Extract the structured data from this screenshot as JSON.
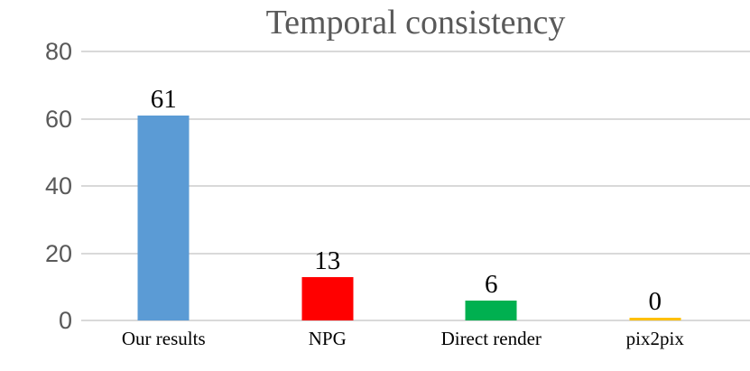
{
  "chart_data": {
    "type": "bar",
    "title": "Temporal consistency",
    "categories": [
      "Our results",
      "NPG",
      "Direct render",
      "pix2pix"
    ],
    "values": [
      61,
      13,
      6,
      0
    ],
    "value_labels": [
      "61",
      "13",
      "6",
      "0"
    ],
    "bar_colors": [
      "#5B9BD5",
      "#FF0000",
      "#00B050",
      "#FFC000"
    ],
    "xlabel": "",
    "ylabel": "",
    "ylim": [
      0,
      80
    ],
    "yticks": [
      0,
      20,
      40,
      60,
      80
    ],
    "grid": true,
    "legend_position": "none"
  },
  "style": {
    "title_color": "#595959",
    "axis_text_color": "#595959",
    "grid_color": "#D9D9D9",
    "value_label_color": "#000000",
    "category_label_color": "#000000",
    "background_color": "#FFFFFF"
  }
}
